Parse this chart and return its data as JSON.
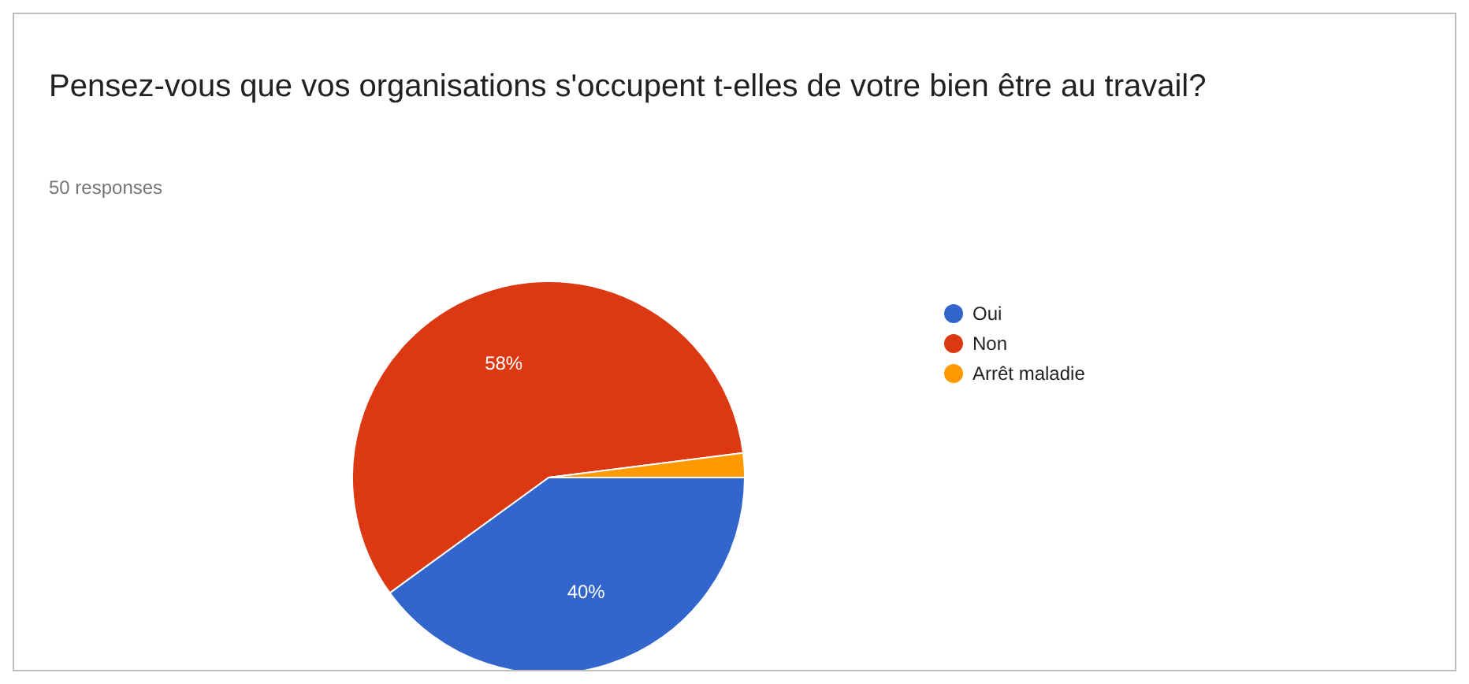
{
  "chart_data": {
    "type": "pie",
    "title": "Pensez-vous que vos organisations s'occupent t-elles de votre bien être au travail?",
    "subtitle": "50 responses",
    "categories": [
      "Oui",
      "Non",
      "Arrêt maladie"
    ],
    "values": [
      40,
      58,
      2
    ],
    "colors": [
      "#3366cc",
      "#dc3912",
      "#ff9900"
    ],
    "value_labels": [
      "40%",
      "58%",
      null
    ],
    "legend": "right"
  }
}
